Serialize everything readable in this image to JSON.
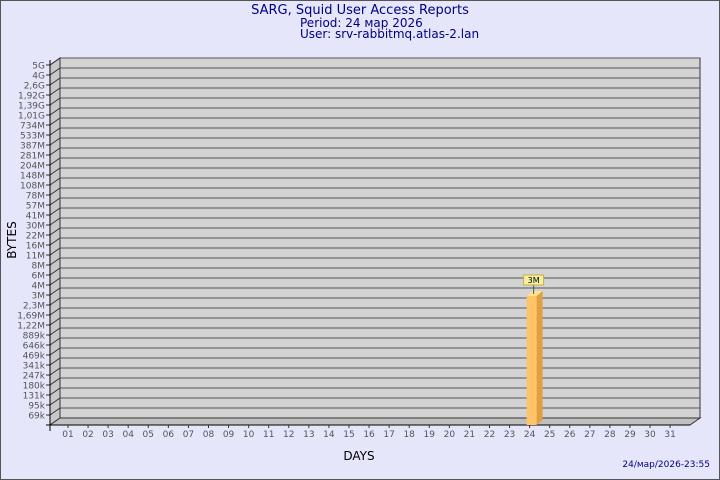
{
  "header": {
    "title": "SARG, Squid User Access Reports",
    "period": "Period: 24 мар 2026",
    "user": "User: srv-rabbitmq.atlas-2.lan"
  },
  "footer": {
    "timestamp": "24/мар/2026-23:55"
  },
  "chart_data": {
    "type": "bar",
    "title": "",
    "xlabel": "DAYS",
    "ylabel": "BYTES",
    "y_scale": "log",
    "grid": true,
    "y_ticks": [
      "5G",
      "4G",
      "2,6G",
      "1,92G",
      "1,39G",
      "1,01G",
      "734M",
      "533M",
      "387M",
      "281M",
      "204M",
      "148M",
      "108M",
      "78M",
      "57M",
      "41M",
      "30M",
      "22M",
      "16M",
      "11M",
      "8M",
      "6M",
      "4M",
      "3M",
      "2,3M",
      "1,69M",
      "1,22M",
      "889k",
      "646k",
      "469k",
      "341k",
      "247k",
      "180k",
      "131k",
      "95k",
      "69k"
    ],
    "categories": [
      "01",
      "02",
      "03",
      "04",
      "05",
      "06",
      "07",
      "08",
      "09",
      "10",
      "11",
      "12",
      "13",
      "14",
      "15",
      "16",
      "17",
      "18",
      "19",
      "20",
      "21",
      "22",
      "23",
      "24",
      "25",
      "26",
      "27",
      "28",
      "29",
      "30",
      "31"
    ],
    "bars": [
      {
        "day": "24",
        "value": "3M",
        "label": "3M"
      }
    ],
    "colors": {
      "bar": "#ffc468",
      "bar_side": "#e0a040",
      "bar_top": "#ffe08a",
      "plot_bg": "#d3d3d3",
      "label_bg": "#f5f0a0"
    }
  }
}
